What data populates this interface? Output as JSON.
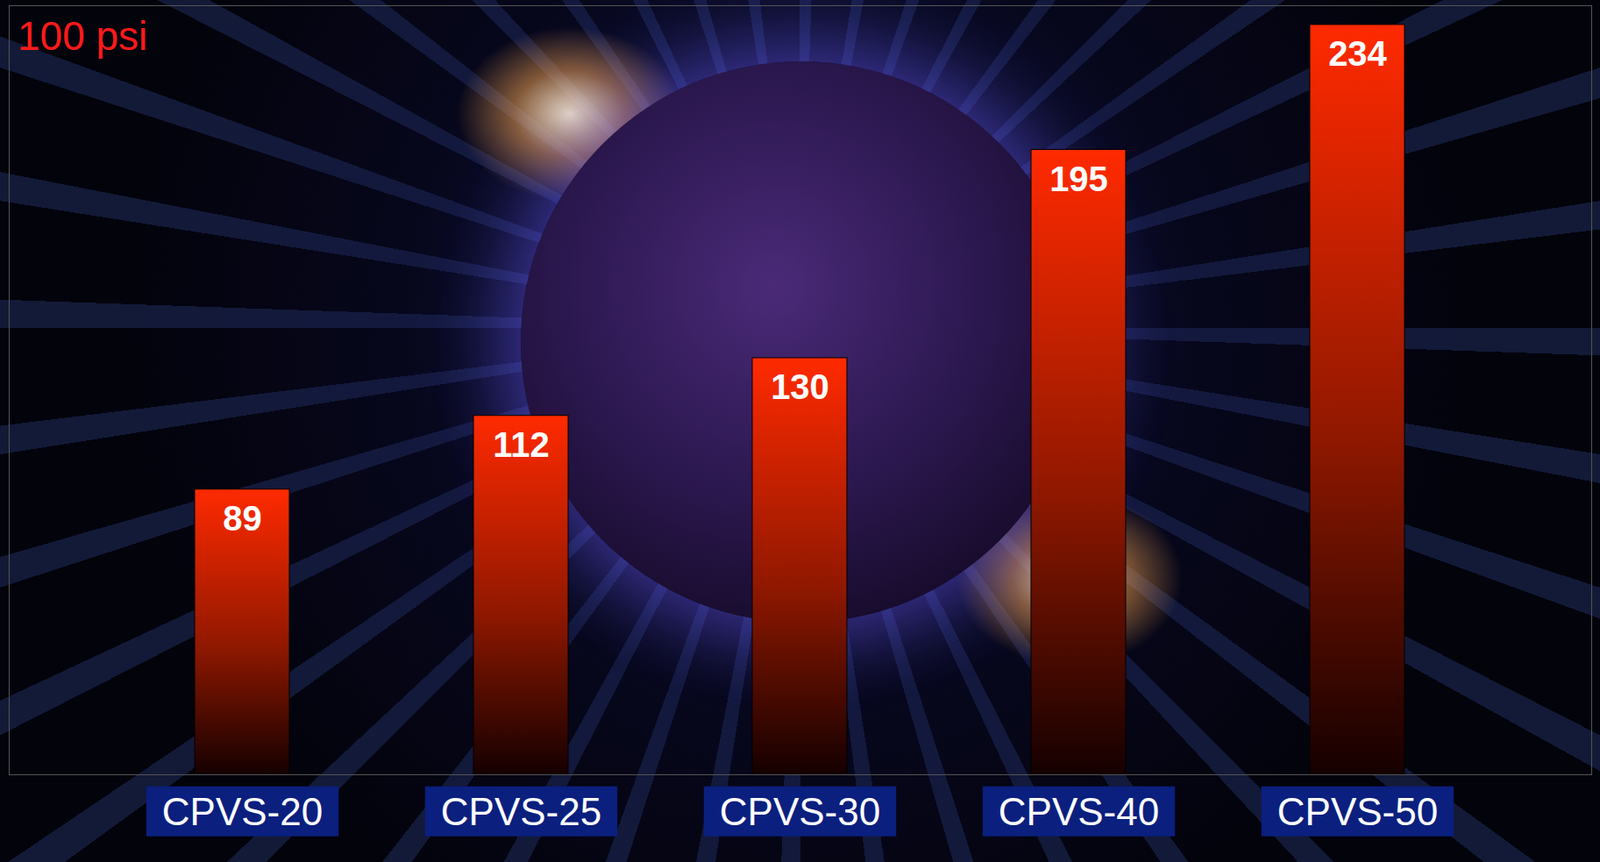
{
  "chart_data": {
    "type": "bar",
    "title": "100 psi",
    "categories": [
      "CPVS-20",
      "CPVS-25",
      "CPVS-30",
      "CPVS-40",
      "CPVS-50"
    ],
    "values": [
      89,
      112,
      130,
      195,
      234
    ],
    "color": "#ff2a00",
    "ylim": [
      0,
      240
    ],
    "data_labels": true,
    "tick_labels": "x",
    "grid": false
  }
}
